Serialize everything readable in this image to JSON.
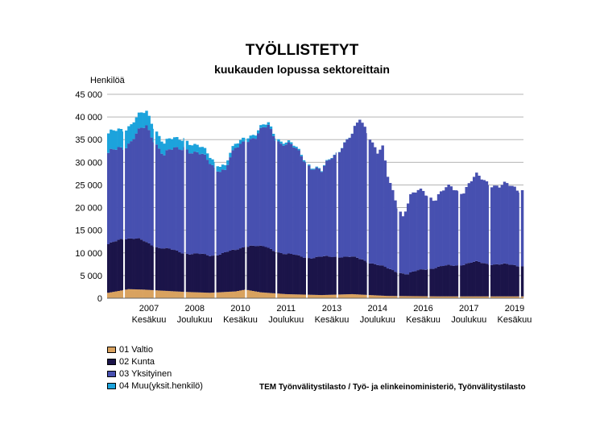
{
  "chart_data": {
    "type": "bar",
    "stacked": true,
    "title": "TYÖLLISTETYT",
    "subtitle": "kuukauden lopussa sektoreittain",
    "ylabel": "Henkilöä",
    "ylim": [
      0,
      45000
    ],
    "yticks": [
      "0",
      "5 000",
      "10 000",
      "15 000",
      "20 000",
      "25 000",
      "30 000",
      "35 000",
      "40 000",
      "45 000"
    ],
    "x_labels": [
      {
        "year": "2007",
        "month": "Kesäkuu",
        "index": 16
      },
      {
        "year": "2008",
        "month": "Joulukuu",
        "index": 34
      },
      {
        "year": "2010",
        "month": "Kesäkuu",
        "index": 52
      },
      {
        "year": "2011",
        "month": "Joulukuu",
        "index": 70
      },
      {
        "year": "2013",
        "month": "Kesäkuu",
        "index": 88
      },
      {
        "year": "2014",
        "month": "Joulukuu",
        "index": 106
      },
      {
        "year": "2016",
        "month": "Kesäkuu",
        "index": 124
      },
      {
        "year": "2017",
        "month": "Joulukuu",
        "index": 142
      },
      {
        "year": "2019",
        "month": "Kesäkuu",
        "index": 160
      }
    ],
    "grid": true,
    "legend_position": "bottom-left",
    "series": [
      {
        "name": "01 Valtio",
        "color": "#d9a25f"
      },
      {
        "name": "02 Kunta",
        "color": "#1b1449"
      },
      {
        "name": "03 Yksityinen",
        "color": "#4750b0"
      },
      {
        "name": "04 Muu(yksit.henkilö)",
        "color": "#1ca3dc"
      }
    ],
    "anchors": {
      "total": [
        [
          0,
          35500
        ],
        [
          4,
          37500
        ],
        [
          9,
          38500
        ],
        [
          15,
          41000
        ],
        [
          18,
          38500
        ],
        [
          22,
          34000
        ],
        [
          27,
          35000
        ],
        [
          30,
          36000
        ],
        [
          34,
          33500
        ],
        [
          40,
          31500
        ],
        [
          46,
          29000
        ],
        [
          50,
          33500
        ],
        [
          54,
          36500
        ],
        [
          58,
          36000
        ],
        [
          63,
          38500
        ],
        [
          68,
          35000
        ],
        [
          72,
          33500
        ],
        [
          76,
          32000
        ],
        [
          80,
          29500
        ],
        [
          84,
          27500
        ],
        [
          88,
          31500
        ],
        [
          92,
          34000
        ],
        [
          96,
          35500
        ],
        [
          99,
          39500
        ],
        [
          102,
          37500
        ],
        [
          106,
          32000
        ],
        [
          108,
          32500
        ],
        [
          110,
          26500
        ],
        [
          114,
          21000
        ],
        [
          116,
          18500
        ],
        [
          119,
          22000
        ],
        [
          124,
          24000
        ],
        [
          129,
          22000
        ],
        [
          135,
          24500
        ],
        [
          140,
          24000
        ],
        [
          145,
          26500
        ],
        [
          150,
          26000
        ],
        [
          154,
          24500
        ],
        [
          159,
          24500
        ],
        [
          163,
          24500
        ]
      ],
      "valtio": [
        [
          0,
          1200
        ],
        [
          8,
          2000
        ],
        [
          14,
          1900
        ],
        [
          20,
          1700
        ],
        [
          30,
          1400
        ],
        [
          40,
          1200
        ],
        [
          50,
          1500
        ],
        [
          54,
          1900
        ],
        [
          60,
          1300
        ],
        [
          70,
          900
        ],
        [
          84,
          700
        ],
        [
          96,
          900
        ],
        [
          110,
          500
        ],
        [
          130,
          400
        ],
        [
          163,
          400
        ]
      ],
      "kunta": [
        [
          0,
          10500
        ],
        [
          5,
          11500
        ],
        [
          12,
          11000
        ],
        [
          20,
          9500
        ],
        [
          30,
          8600
        ],
        [
          40,
          8200
        ],
        [
          50,
          9000
        ],
        [
          56,
          10000
        ],
        [
          62,
          10000
        ],
        [
          70,
          8800
        ],
        [
          80,
          8200
        ],
        [
          90,
          8500
        ],
        [
          100,
          7800
        ],
        [
          110,
          6000
        ],
        [
          118,
          4800
        ],
        [
          124,
          6000
        ],
        [
          135,
          6800
        ],
        [
          145,
          7500
        ],
        [
          155,
          7000
        ],
        [
          163,
          6800
        ]
      ],
      "muu": [
        [
          0,
          4300
        ],
        [
          6,
          4000
        ],
        [
          14,
          3300
        ],
        [
          24,
          2400
        ],
        [
          34,
          1700
        ],
        [
          44,
          1100
        ],
        [
          54,
          800
        ],
        [
          66,
          500
        ],
        [
          80,
          200
        ],
        [
          92,
          60
        ],
        [
          100,
          0
        ],
        [
          163,
          0
        ]
      ]
    }
  },
  "source": "TEM Työnvälitystilasto / Työ- ja elinkeinoministeriö, Työnvälitystilasto"
}
